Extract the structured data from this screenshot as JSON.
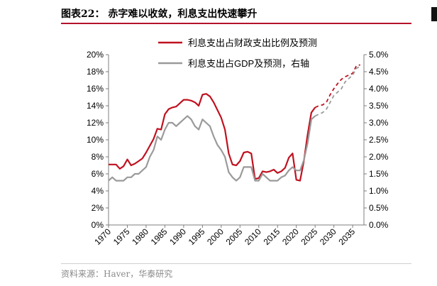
{
  "header": {
    "title": "图表22：  赤字难以收敛，利息支出快速攀升",
    "source": "资料来源：Haver，华泰研究"
  },
  "colors": {
    "series1": "#c0111f",
    "series2": "#9a9a9a",
    "axis": "#7f7f7f",
    "title_rule": "#b5122b"
  },
  "chart_data": {
    "type": "line",
    "legend_position": "top-right",
    "grid": false,
    "x_ticks": [
      "1970",
      "1975",
      "1980",
      "1985",
      "1990",
      "1995",
      "2000",
      "2005",
      "2010",
      "2015",
      "2020",
      "2025",
      "2030",
      "2035"
    ],
    "xlim": [
      1970,
      2038
    ],
    "y_left": {
      "ticks": [
        "0%",
        "2%",
        "4%",
        "6%",
        "8%",
        "10%",
        "12%",
        "14%",
        "16%",
        "18%",
        "20%"
      ],
      "lim": [
        0,
        20
      ]
    },
    "y_right": {
      "ticks": [
        "0.0%",
        "0.5%",
        "1.0%",
        "1.5%",
        "2.0%",
        "2.5%",
        "3.0%",
        "3.5%",
        "4.0%",
        "4.5%",
        "5.0%"
      ],
      "lim": [
        0,
        5
      ]
    },
    "series": [
      {
        "name": "利息支出占财政支出比例及预测",
        "axis": "left",
        "color": "#c0111f",
        "actual": [
          [
            1970,
            7.1
          ],
          [
            1971,
            7.1
          ],
          [
            1972,
            7.1
          ],
          [
            1973,
            6.6
          ],
          [
            1974,
            6.9
          ],
          [
            1975,
            7.7
          ],
          [
            1976,
            7.0
          ],
          [
            1977,
            7.2
          ],
          [
            1978,
            7.5
          ],
          [
            1979,
            7.8
          ],
          [
            1980,
            8.5
          ],
          [
            1981,
            9.3
          ],
          [
            1982,
            10.1
          ],
          [
            1983,
            11.3
          ],
          [
            1984,
            11.2
          ],
          [
            1985,
            13.0
          ],
          [
            1986,
            13.6
          ],
          [
            1987,
            13.8
          ],
          [
            1988,
            13.9
          ],
          [
            1989,
            14.3
          ],
          [
            1990,
            14.7
          ],
          [
            1991,
            14.7
          ],
          [
            1992,
            14.6
          ],
          [
            1993,
            14.4
          ],
          [
            1994,
            14.0
          ],
          [
            1995,
            15.3
          ],
          [
            1996,
            15.4
          ],
          [
            1997,
            15.1
          ],
          [
            1998,
            14.4
          ],
          [
            1999,
            13.5
          ],
          [
            2000,
            12.6
          ],
          [
            2001,
            11.2
          ],
          [
            2002,
            8.4
          ],
          [
            2003,
            7.1
          ],
          [
            2004,
            7.0
          ],
          [
            2005,
            7.5
          ],
          [
            2006,
            8.5
          ],
          [
            2007,
            8.6
          ],
          [
            2008,
            8.4
          ],
          [
            2009,
            5.4
          ],
          [
            2010,
            5.5
          ],
          [
            2011,
            6.3
          ],
          [
            2012,
            6.2
          ],
          [
            2013,
            6.3
          ],
          [
            2014,
            6.5
          ],
          [
            2015,
            6.1
          ],
          [
            2016,
            6.3
          ],
          [
            2017,
            6.7
          ],
          [
            2018,
            7.9
          ],
          [
            2019,
            8.4
          ],
          [
            2020,
            5.3
          ],
          [
            2021,
            5.2
          ],
          [
            2022,
            7.5
          ],
          [
            2023,
            10.6
          ],
          [
            2024,
            13.2
          ],
          [
            2025,
            13.8
          ]
        ],
        "forecast": [
          [
            2025,
            13.8
          ],
          [
            2026,
            14.0
          ],
          [
            2027,
            14.1
          ],
          [
            2028,
            14.4
          ],
          [
            2029,
            15.3
          ],
          [
            2030,
            16.0
          ],
          [
            2031,
            16.6
          ],
          [
            2032,
            17.1
          ],
          [
            2033,
            17.4
          ],
          [
            2034,
            17.6
          ],
          [
            2035,
            17.8
          ],
          [
            2036,
            18.7
          ],
          [
            2037,
            18.8
          ]
        ]
      },
      {
        "name": "利息支出占GDP及预测，右轴",
        "axis": "right",
        "color": "#9a9a9a",
        "actual": [
          [
            1970,
            1.3
          ],
          [
            1971,
            1.4
          ],
          [
            1972,
            1.3
          ],
          [
            1973,
            1.3
          ],
          [
            1974,
            1.3
          ],
          [
            1975,
            1.4
          ],
          [
            1976,
            1.4
          ],
          [
            1977,
            1.5
          ],
          [
            1978,
            1.5
          ],
          [
            1979,
            1.6
          ],
          [
            1980,
            1.7
          ],
          [
            1981,
            2.0
          ],
          [
            1982,
            2.2
          ],
          [
            1983,
            2.6
          ],
          [
            1984,
            2.5
          ],
          [
            1985,
            2.8
          ],
          [
            1986,
            3.0
          ],
          [
            1987,
            3.0
          ],
          [
            1988,
            2.9
          ],
          [
            1989,
            3.0
          ],
          [
            1990,
            3.1
          ],
          [
            1991,
            3.2
          ],
          [
            1992,
            3.1
          ],
          [
            1993,
            2.9
          ],
          [
            1994,
            2.8
          ],
          [
            1995,
            3.1
          ],
          [
            1996,
            3.0
          ],
          [
            1997,
            2.9
          ],
          [
            1998,
            2.6
          ],
          [
            1999,
            2.35
          ],
          [
            2000,
            2.2
          ],
          [
            2001,
            2.0
          ],
          [
            2002,
            1.55
          ],
          [
            2003,
            1.4
          ],
          [
            2004,
            1.3
          ],
          [
            2005,
            1.4
          ],
          [
            2006,
            1.7
          ],
          [
            2007,
            1.7
          ],
          [
            2008,
            1.7
          ],
          [
            2009,
            1.3
          ],
          [
            2010,
            1.3
          ],
          [
            2011,
            1.5
          ],
          [
            2012,
            1.4
          ],
          [
            2013,
            1.3
          ],
          [
            2014,
            1.3
          ],
          [
            2015,
            1.3
          ],
          [
            2016,
            1.4
          ],
          [
            2017,
            1.45
          ],
          [
            2018,
            1.6
          ],
          [
            2019,
            1.7
          ],
          [
            2020,
            1.6
          ],
          [
            2021,
            1.6
          ],
          [
            2022,
            1.9
          ],
          [
            2023,
            2.4
          ],
          [
            2024,
            3.1
          ],
          [
            2025,
            3.2
          ]
        ],
        "forecast": [
          [
            2025,
            3.2
          ],
          [
            2026,
            3.25
          ],
          [
            2027,
            3.3
          ],
          [
            2028,
            3.4
          ],
          [
            2029,
            3.6
          ],
          [
            2030,
            3.8
          ],
          [
            2031,
            3.9
          ],
          [
            2032,
            4.0
          ],
          [
            2033,
            4.2
          ],
          [
            2034,
            4.3
          ],
          [
            2035,
            4.4
          ],
          [
            2036,
            4.6
          ],
          [
            2037,
            4.65
          ]
        ]
      }
    ]
  }
}
